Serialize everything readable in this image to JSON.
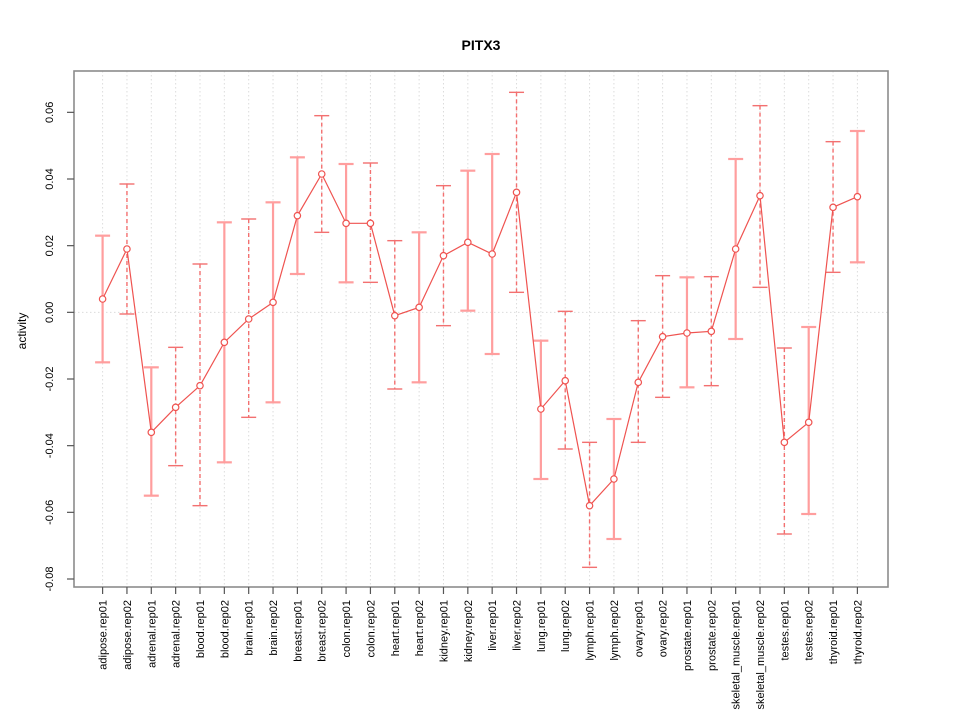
{
  "chart_data": {
    "type": "line",
    "subtype": "points-with-error-bars",
    "title": "PITX3",
    "xlabel": "",
    "ylabel": "activity",
    "ylim": [
      -0.0824,
      0.0724
    ],
    "grid": "vertical-dotted-per-category-plus-dotted-zero-line",
    "legend": "none",
    "y_ticks": [
      {
        "label": "0.06",
        "value": 0.06
      },
      {
        "label": "0.04",
        "value": 0.04
      },
      {
        "label": "0.02",
        "value": 0.02
      },
      {
        "label": "0.00",
        "value": 0.0
      },
      {
        "label": "-0.02",
        "value": -0.02
      },
      {
        "label": "-0.04",
        "value": -0.04
      },
      {
        "label": "-0.06",
        "value": -0.06
      },
      {
        "label": "-0.08",
        "value": -0.08
      }
    ],
    "points": [
      {
        "label": "adipose.rep01",
        "value": 0.004,
        "low": -0.015,
        "high": 0.023,
        "bar_style": "solid"
      },
      {
        "label": "adipose.rep02",
        "value": 0.019,
        "low": -0.0005,
        "high": 0.0385,
        "bar_style": "dashed"
      },
      {
        "label": "adrenal.rep01",
        "value": -0.036,
        "low": -0.055,
        "high": -0.0165,
        "bar_style": "solid"
      },
      {
        "label": "adrenal.rep02",
        "value": -0.0285,
        "low": -0.046,
        "high": -0.0105,
        "bar_style": "dashed"
      },
      {
        "label": "blood.rep01",
        "value": -0.022,
        "low": -0.058,
        "high": 0.0145,
        "bar_style": "dashed"
      },
      {
        "label": "blood.rep02",
        "value": -0.009,
        "low": -0.045,
        "high": 0.027,
        "bar_style": "solid"
      },
      {
        "label": "brain.rep01",
        "value": -0.002,
        "low": -0.0315,
        "high": 0.028,
        "bar_style": "dashed"
      },
      {
        "label": "brain.rep02",
        "value": 0.003,
        "low": -0.027,
        "high": 0.033,
        "bar_style": "solid"
      },
      {
        "label": "breast.rep01",
        "value": 0.029,
        "low": 0.0115,
        "high": 0.0465,
        "bar_style": "solid"
      },
      {
        "label": "breast.rep02",
        "value": 0.0415,
        "low": 0.024,
        "high": 0.059,
        "bar_style": "dashed"
      },
      {
        "label": "colon.rep01",
        "value": 0.0267,
        "low": 0.009,
        "high": 0.0445,
        "bar_style": "solid"
      },
      {
        "label": "colon.rep02",
        "value": 0.0267,
        "low": 0.009,
        "high": 0.0448,
        "bar_style": "dashed"
      },
      {
        "label": "heart.rep01",
        "value": -0.001,
        "low": -0.023,
        "high": 0.0215,
        "bar_style": "dashed"
      },
      {
        "label": "heart.rep02",
        "value": 0.0015,
        "low": -0.021,
        "high": 0.024,
        "bar_style": "solid"
      },
      {
        "label": "kidney.rep01",
        "value": 0.017,
        "low": -0.004,
        "high": 0.038,
        "bar_style": "dashed"
      },
      {
        "label": "kidney.rep02",
        "value": 0.021,
        "low": 0.0005,
        "high": 0.0425,
        "bar_style": "solid"
      },
      {
        "label": "liver.rep01",
        "value": 0.0175,
        "low": -0.0125,
        "high": 0.0475,
        "bar_style": "solid"
      },
      {
        "label": "liver.rep02",
        "value": 0.036,
        "low": 0.006,
        "high": 0.066,
        "bar_style": "dashed"
      },
      {
        "label": "lung.rep01",
        "value": -0.029,
        "low": -0.05,
        "high": -0.0085,
        "bar_style": "solid"
      },
      {
        "label": "lung.rep02",
        "value": -0.0205,
        "low": -0.041,
        "high": 0.0003,
        "bar_style": "dashed"
      },
      {
        "label": "lymph.rep01",
        "value": -0.058,
        "low": -0.0765,
        "high": -0.039,
        "bar_style": "dashed"
      },
      {
        "label": "lymph.rep02",
        "value": -0.05,
        "low": -0.068,
        "high": -0.032,
        "bar_style": "solid"
      },
      {
        "label": "ovary.rep01",
        "value": -0.021,
        "low": -0.039,
        "high": -0.0025,
        "bar_style": "dashed"
      },
      {
        "label": "ovary.rep02",
        "value": -0.0073,
        "low": -0.0255,
        "high": 0.011,
        "bar_style": "dashed"
      },
      {
        "label": "prostate.rep01",
        "value": -0.0062,
        "low": -0.0225,
        "high": 0.0105,
        "bar_style": "solid"
      },
      {
        "label": "prostate.rep02",
        "value": -0.0057,
        "low": -0.022,
        "high": 0.0107,
        "bar_style": "dashed"
      },
      {
        "label": "skeletal_muscle.rep01",
        "value": 0.019,
        "low": -0.008,
        "high": 0.046,
        "bar_style": "solid"
      },
      {
        "label": "skeletal_muscle.rep02",
        "value": 0.035,
        "low": 0.0075,
        "high": 0.062,
        "bar_style": "dashed"
      },
      {
        "label": "testes.rep01",
        "value": -0.039,
        "low": -0.0665,
        "high": -0.0107,
        "bar_style": "dashed"
      },
      {
        "label": "testes.rep02",
        "value": -0.033,
        "low": -0.0605,
        "high": -0.0044,
        "bar_style": "solid"
      },
      {
        "label": "thyroid.rep01",
        "value": 0.0315,
        "low": 0.012,
        "high": 0.0512,
        "bar_style": "dashed"
      },
      {
        "label": "thyroid.rep02",
        "value": 0.0347,
        "low": 0.015,
        "high": 0.0544,
        "bar_style": "solid"
      }
    ],
    "colors": {
      "series_line": "#ef5350",
      "marker_stroke": "#ef5350",
      "marker_fill": "#ffffff",
      "error_bar_solid": "#ff9e9e",
      "error_bar_dashed": "#f37070",
      "gridline": "#dcdcdc",
      "zero_line": "#dcdcdc",
      "plot_border": "#8c8c8c",
      "tick": "#555555",
      "text": "#000000"
    }
  }
}
